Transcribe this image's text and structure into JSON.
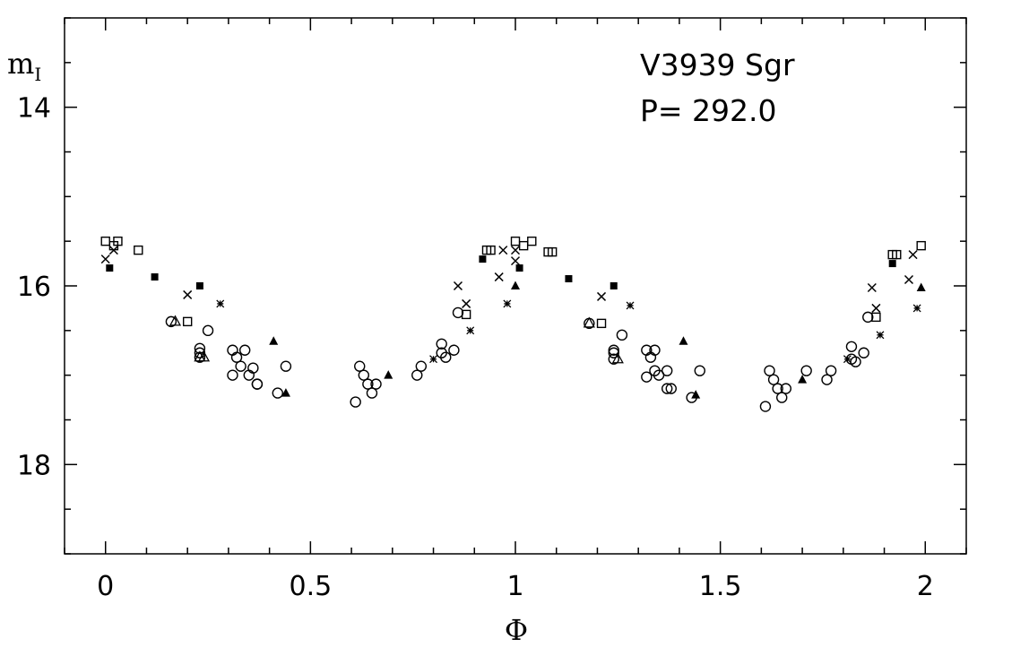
{
  "chart_data": {
    "type": "scatter",
    "title": "",
    "annotations": [
      "V3939 Sgr",
      "P= 292.0"
    ],
    "xlabel": "Φ",
    "ylabel": {
      "main": "m",
      "sub": "I"
    },
    "xlim": [
      -0.1,
      2.1
    ],
    "ylim": [
      19.0,
      13.0
    ],
    "y_inverted": true,
    "x_major_ticks": [
      0,
      0.5,
      1,
      1.5,
      2
    ],
    "x_tick_labels": [
      "0",
      "0.5",
      "1",
      "1.5",
      "2"
    ],
    "y_major_ticks": [
      14,
      16,
      18
    ],
    "y_tick_labels": [
      "14",
      "16",
      "18"
    ],
    "x_minor_step": 0.1,
    "y_minor_step": 0.5,
    "grid": false,
    "legend": "none",
    "series": [
      {
        "marker": "open-circle",
        "points": [
          [
            0.16,
            16.4
          ],
          [
            0.23,
            16.7
          ],
          [
            0.23,
            16.75
          ],
          [
            0.23,
            16.8
          ],
          [
            0.25,
            16.5
          ],
          [
            0.31,
            16.72
          ],
          [
            0.32,
            16.8
          ],
          [
            0.31,
            17.0
          ],
          [
            0.33,
            16.9
          ],
          [
            0.34,
            16.72
          ],
          [
            0.35,
            17.0
          ],
          [
            0.36,
            16.92
          ],
          [
            0.37,
            17.1
          ],
          [
            0.37,
            17.1
          ],
          [
            0.42,
            17.2
          ],
          [
            0.44,
            16.9
          ],
          [
            0.61,
            17.3
          ],
          [
            0.62,
            16.9
          ],
          [
            0.63,
            17.0
          ],
          [
            0.64,
            17.1
          ],
          [
            0.65,
            17.2
          ],
          [
            0.66,
            17.1
          ],
          [
            0.76,
            17.0
          ],
          [
            0.77,
            16.9
          ],
          [
            0.82,
            16.65
          ],
          [
            0.82,
            16.75
          ],
          [
            0.83,
            16.8
          ],
          [
            0.85,
            16.72
          ],
          [
            0.86,
            16.3
          ],
          [
            1.18,
            16.42
          ],
          [
            1.24,
            16.72
          ],
          [
            1.24,
            16.75
          ],
          [
            1.24,
            16.82
          ],
          [
            1.26,
            16.55
          ],
          [
            1.32,
            16.72
          ],
          [
            1.33,
            16.8
          ],
          [
            1.32,
            17.02
          ],
          [
            1.34,
            16.95
          ],
          [
            1.34,
            16.72
          ],
          [
            1.35,
            17.0
          ],
          [
            1.37,
            16.95
          ],
          [
            1.37,
            17.15
          ],
          [
            1.38,
            17.15
          ],
          [
            1.43,
            17.25
          ],
          [
            1.45,
            16.95
          ],
          [
            1.61,
            17.35
          ],
          [
            1.62,
            16.95
          ],
          [
            1.63,
            17.05
          ],
          [
            1.64,
            17.15
          ],
          [
            1.65,
            17.25
          ],
          [
            1.66,
            17.15
          ],
          [
            1.71,
            16.95
          ],
          [
            1.76,
            17.05
          ],
          [
            1.77,
            16.95
          ],
          [
            1.82,
            16.68
          ],
          [
            1.82,
            16.82
          ],
          [
            1.83,
            16.85
          ],
          [
            1.85,
            16.75
          ],
          [
            1.86,
            16.35
          ]
        ]
      },
      {
        "marker": "open-square",
        "points": [
          [
            0.0,
            15.5
          ],
          [
            0.02,
            15.55
          ],
          [
            0.03,
            15.5
          ],
          [
            0.08,
            15.6
          ],
          [
            0.2,
            16.4
          ],
          [
            0.88,
            16.32
          ],
          [
            0.93,
            15.6
          ],
          [
            0.94,
            15.6
          ],
          [
            1.0,
            15.5
          ],
          [
            1.02,
            15.55
          ],
          [
            1.04,
            15.5
          ],
          [
            1.08,
            15.62
          ],
          [
            1.09,
            15.62
          ],
          [
            1.21,
            16.42
          ],
          [
            1.88,
            16.35
          ],
          [
            1.92,
            15.65
          ],
          [
            1.93,
            15.65
          ],
          [
            1.99,
            15.55
          ]
        ]
      },
      {
        "marker": "filled-square",
        "points": [
          [
            0.01,
            15.8
          ],
          [
            0.12,
            15.9
          ],
          [
            0.23,
            16.0
          ],
          [
            0.92,
            15.7
          ],
          [
            1.01,
            15.8
          ],
          [
            1.13,
            15.92
          ],
          [
            1.24,
            16.0
          ],
          [
            1.92,
            15.75
          ]
        ]
      },
      {
        "marker": "filled-triangle",
        "points": [
          [
            0.41,
            16.62
          ],
          [
            0.44,
            17.2
          ],
          [
            0.69,
            17.0
          ],
          [
            1.0,
            16.0
          ],
          [
            1.41,
            16.62
          ],
          [
            1.44,
            17.22
          ],
          [
            1.7,
            17.05
          ],
          [
            1.99,
            16.02
          ]
        ]
      },
      {
        "marker": "open-triangle",
        "points": [
          [
            0.17,
            16.4
          ],
          [
            0.23,
            16.8
          ],
          [
            0.24,
            16.8
          ],
          [
            1.18,
            16.42
          ],
          [
            1.25,
            16.82
          ]
        ]
      },
      {
        "marker": "cross",
        "points": [
          [
            0.0,
            15.7
          ],
          [
            0.02,
            15.6
          ],
          [
            0.2,
            16.1
          ],
          [
            0.86,
            16.0
          ],
          [
            0.88,
            16.2
          ],
          [
            0.96,
            15.9
          ],
          [
            0.97,
            15.6
          ],
          [
            1.0,
            15.6
          ],
          [
            1.0,
            15.72
          ],
          [
            1.21,
            16.12
          ],
          [
            1.87,
            16.02
          ],
          [
            1.88,
            16.25
          ],
          [
            1.96,
            15.93
          ],
          [
            1.97,
            15.65
          ]
        ]
      },
      {
        "marker": "star",
        "points": [
          [
            0.28,
            16.2
          ],
          [
            0.8,
            16.82
          ],
          [
            0.89,
            16.5
          ],
          [
            0.98,
            16.2
          ],
          [
            1.28,
            16.22
          ],
          [
            1.81,
            16.82
          ],
          [
            1.89,
            16.55
          ],
          [
            1.98,
            16.25
          ]
        ]
      }
    ]
  }
}
